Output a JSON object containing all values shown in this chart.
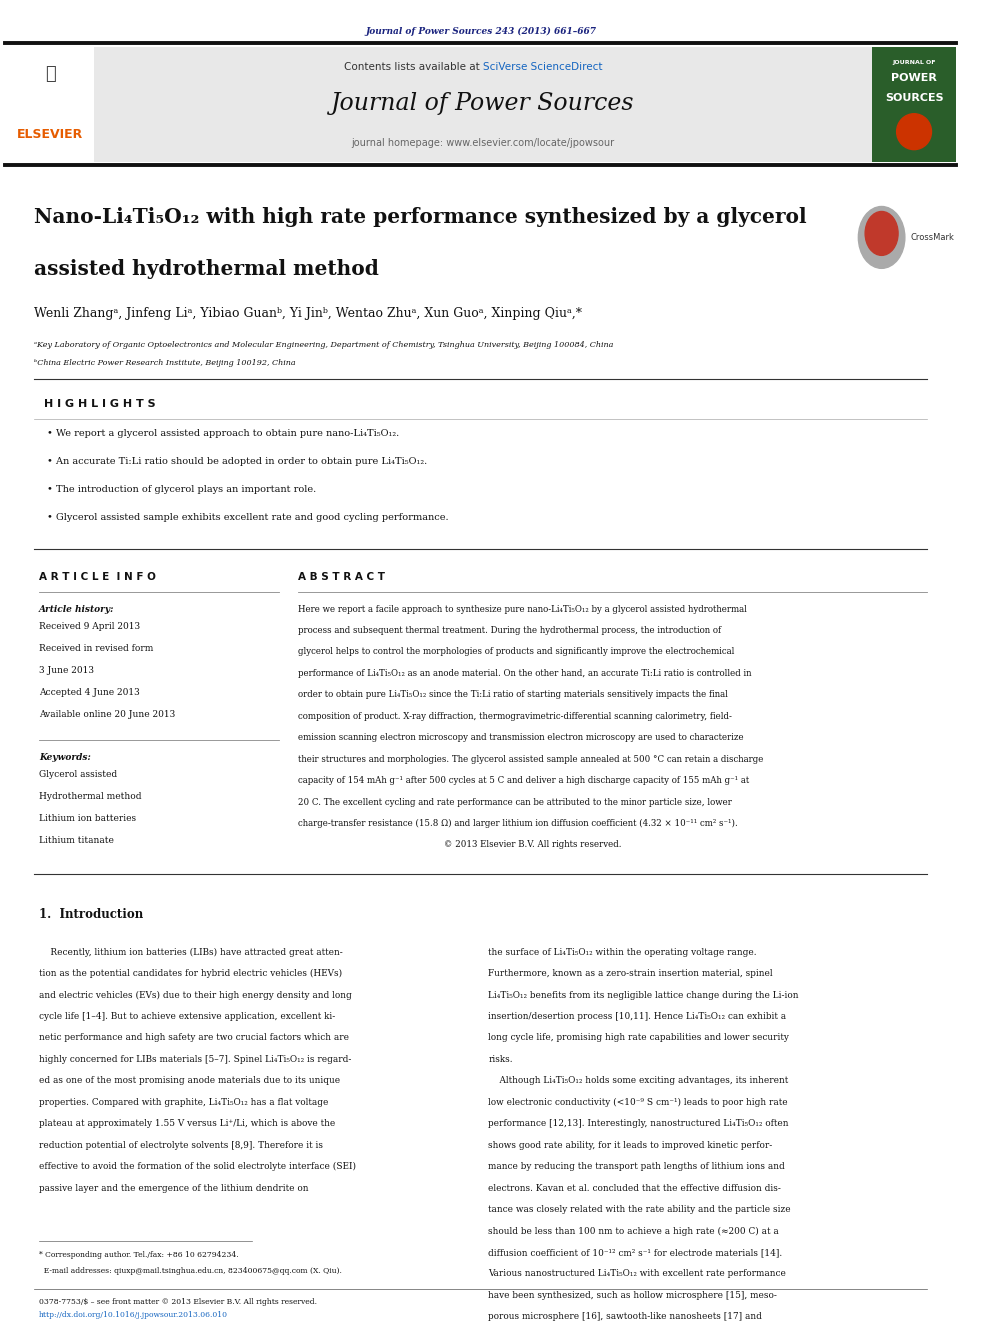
{
  "page_width": 9.92,
  "page_height": 13.23,
  "bg_color": "#ffffff",
  "journal_ref": "Journal of Power Sources 243 (2013) 661–667",
  "journal_ref_color": "#1a237e",
  "header_bg": "#e8e8e8",
  "header_sciverse_color": "#1565c0",
  "journal_title": "Journal of Power Sources",
  "journal_homepage": "journal homepage: www.elsevier.com/locate/jpowsour",
  "elsevier_color": "#e65c00",
  "article_title_line1": "Nano-Li₄Ti₅O₁₂ with high rate performance synthesized by a glycerol",
  "article_title_line2": "assisted hydrothermal method",
  "authors": "Wenli Zhangᵃ, Jinfeng Liᵃ, Yibiao Guanᵇ, Yi Jinᵇ, Wentao Zhuᵃ, Xun Guoᵃ, Xinping Qiuᵃ,*",
  "affil_a": "ᵃKey Laboratory of Organic Optoelectronics and Molecular Engineering, Department of Chemistry, Tsinghua University, Beijing 100084, China",
  "affil_b": "ᵇChina Electric Power Research Institute, Beijing 100192, China",
  "highlights_title": "H I G H L I G H T S",
  "highlights": [
    "We report a glycerol assisted approach to obtain pure nano-Li₄Ti₅O₁₂.",
    "An accurate Ti:Li ratio should be adopted in order to obtain pure Li₄Ti₅O₁₂.",
    "The introduction of glycerol plays an important role.",
    "Glycerol assisted sample exhibits excellent rate and good cycling performance."
  ],
  "article_info_title": "A R T I C L E  I N F O",
  "abstract_title": "A B S T R A C T",
  "article_history_label": "Article history:",
  "article_history": [
    "Received 9 April 2013",
    "Received in revised form",
    "3 June 2013",
    "Accepted 4 June 2013",
    "Available online 20 June 2013"
  ],
  "keywords_label": "Keywords:",
  "keywords": [
    "Glycerol assisted",
    "Hydrothermal method",
    "Lithium ion batteries",
    "Lithium titanate"
  ],
  "abstract_lines": [
    "Here we report a facile approach to synthesize pure nano-Li₄Ti₅O₁₂ by a glycerol assisted hydrothermal",
    "process and subsequent thermal treatment. During the hydrothermal process, the introduction of",
    "glycerol helps to control the morphologies of products and significantly improve the electrochemical",
    "performance of Li₄Ti₅O₁₂ as an anode material. On the other hand, an accurate Ti:Li ratio is controlled in",
    "order to obtain pure Li₄Ti₅O₁₂ since the Ti:Li ratio of starting materials sensitively impacts the final",
    "composition of product. X-ray diffraction, thermogravimetric-differential scanning calorimetry, field-",
    "emission scanning electron microscopy and transmission electron microscopy are used to characterize",
    "their structures and morphologies. The glycerol assisted sample annealed at 500 °C can retain a discharge",
    "capacity of 154 mAh g⁻¹ after 500 cycles at 5 C and deliver a high discharge capacity of 155 mAh g⁻¹ at",
    "20 C. The excellent cycling and rate performance can be attributed to the minor particle size, lower",
    "charge-transfer resistance (15.8 Ω) and larger lithium ion diffusion coefficient (4.32 × 10⁻¹¹ cm² s⁻¹).",
    "                                                     © 2013 Elsevier B.V. All rights reserved."
  ],
  "intro_title": "1.  Introduction",
  "intro_col1_lines": [
    "    Recently, lithium ion batteries (LIBs) have attracted great atten-",
    "tion as the potential candidates for hybrid electric vehicles (HEVs)",
    "and electric vehicles (EVs) due to their high energy density and long",
    "cycle life [1–4]. But to achieve extensive application, excellent ki-",
    "netic performance and high safety are two crucial factors which are",
    "highly concerned for LIBs materials [5–7]. Spinel Li₄Ti₅O₁₂ is regard-",
    "ed as one of the most promising anode materials due to its unique",
    "properties. Compared with graphite, Li₄Ti₅O₁₂ has a flat voltage",
    "plateau at approximately 1.55 V versus Li⁺/Li, which is above the",
    "reduction potential of electrolyte solvents [8,9]. Therefore it is",
    "effective to avoid the formation of the solid electrolyte interface (SEI)",
    "passive layer and the emergence of the lithium dendrite on"
  ],
  "intro_col2_lines": [
    "the surface of Li₄Ti₅O₁₂ within the operating voltage range.",
    "Furthermore, known as a zero-strain insertion material, spinel",
    "Li₄Ti₅O₁₂ benefits from its negligible lattice change during the Li-ion",
    "insertion/desertion process [10,11]. Hence Li₄Ti₅O₁₂ can exhibit a",
    "long cycle life, promising high rate capabilities and lower security",
    "risks.",
    "    Although Li₄Ti₅O₁₂ holds some exciting advantages, its inherent",
    "low electronic conductivity (<10⁻⁹ S cm⁻¹) leads to poor high rate",
    "performance [12,13]. Interestingly, nanostructured Li₄Ti₅O₁₂ often",
    "shows good rate ability, for it leads to improved kinetic perfor-",
    "mance by reducing the transport path lengths of lithium ions and",
    "electrons. Kavan et al. concluded that the effective diffusion dis-",
    "tance was closely related with the rate ability and the particle size",
    "should be less than 100 nm to achieve a high rate (≈200 C) at a",
    "diffusion coefficient of 10⁻¹² cm² s⁻¹ for electrode materials [14].",
    "Various nanostructured Li₄Ti₅O₁₂ with excellent rate performance",
    "have been synthesized, such as hollow microsphere [15], meso-",
    "porous microsphere [16], sawtooth-like nanosheets [17] and"
  ],
  "footnote_line1": "* Corresponding author. Tel./fax: +86 10 62794234.",
  "footnote_line2": "  E-mail addresses: qiuxp@mail.tsinghua.edu.cn, 823400675@qq.com (X. Qiu).",
  "footer_text1": "0378-7753/$ – see front matter © 2013 Elsevier B.V. All rights reserved.",
  "footer_text2": "http://dx.doi.org/10.1016/j.jpowsour.2013.06.010"
}
